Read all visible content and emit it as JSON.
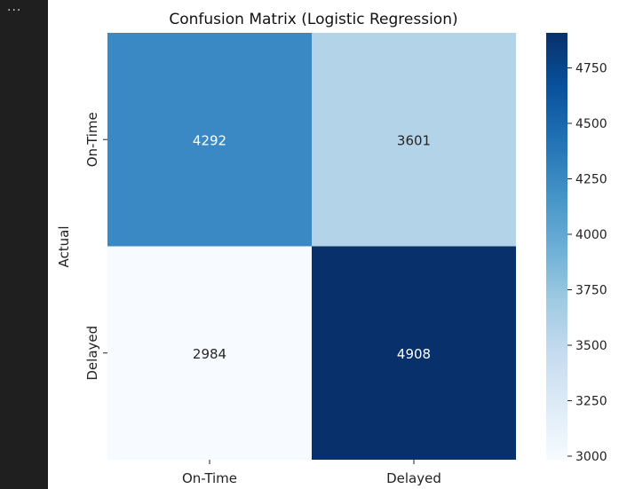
{
  "notebook": {
    "cell_ellipsis": "..."
  },
  "chart_data": {
    "type": "heatmap",
    "title": "Confusion Matrix (Logistic Regression)",
    "xlabel": "",
    "ylabel": "Actual",
    "x_categories": [
      "On-Time",
      "Delayed"
    ],
    "y_categories": [
      "On-Time",
      "Delayed"
    ],
    "values": [
      [
        4292,
        3601
      ],
      [
        2984,
        4908
      ]
    ],
    "colormap": "Blues",
    "colorbar": {
      "min": 2984,
      "max": 4908,
      "ticks": [
        3000,
        3250,
        3500,
        3750,
        4000,
        4250,
        4500,
        4750
      ]
    },
    "cell_colors": {
      "4292": "#3b89c4",
      "3601": "#b3d3e9",
      "2984": "#f7fbff",
      "4908": "#08306b"
    },
    "annotation_text_colors": {
      "light": "#ffffff",
      "dark": "#262626"
    }
  }
}
